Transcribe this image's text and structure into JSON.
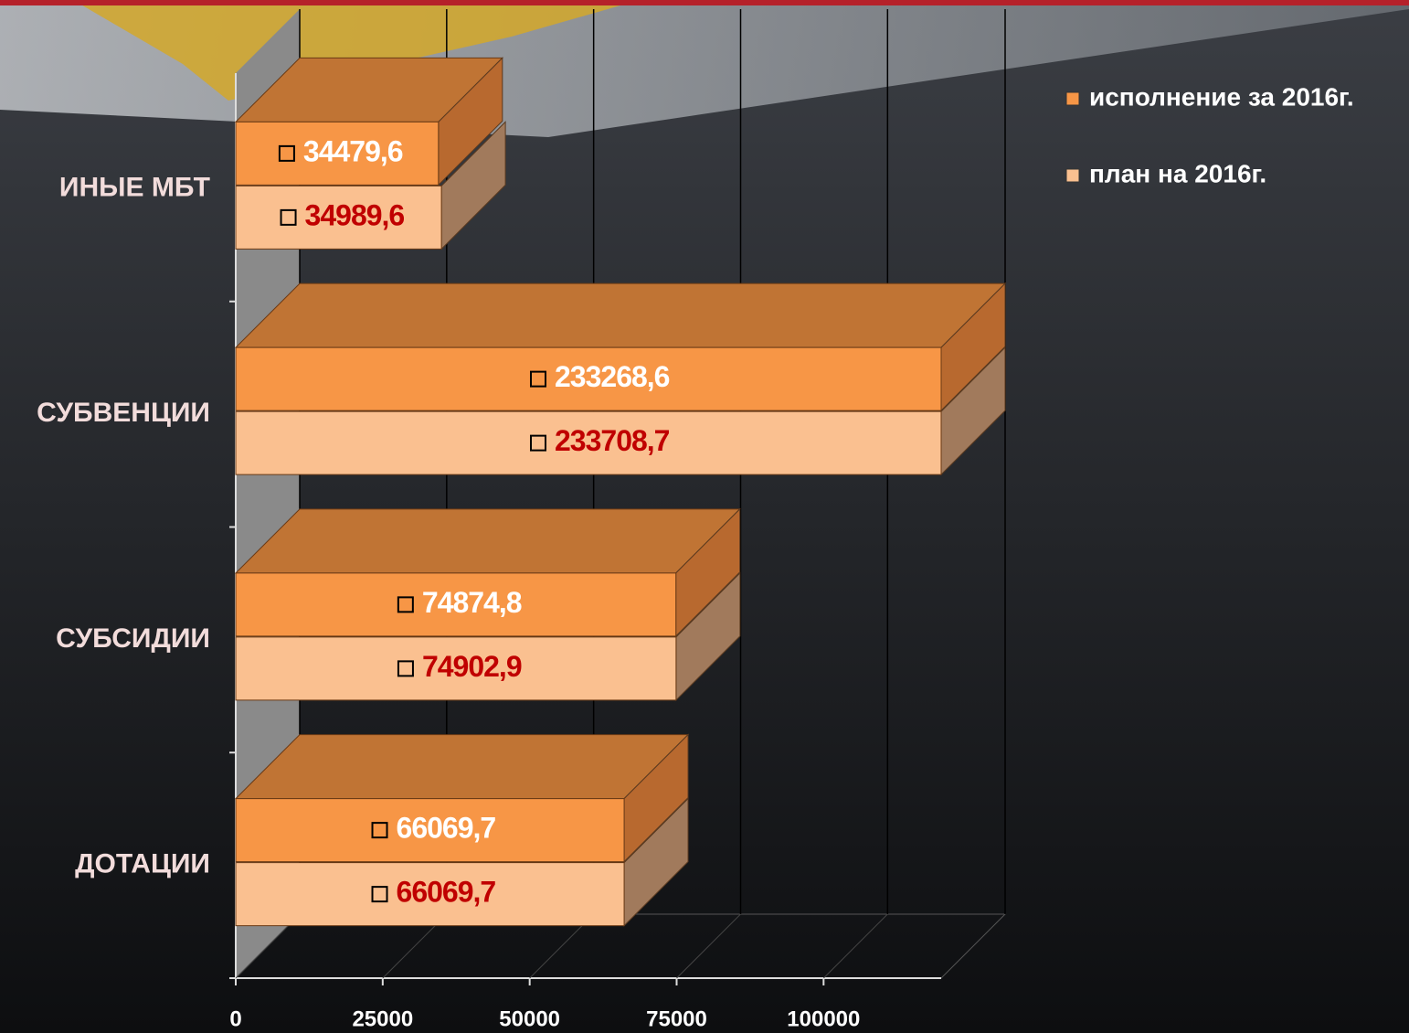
{
  "chart_data": {
    "type": "bar3d_horizontal",
    "categories": [
      "ИНЫЕ МБТ",
      "СУБВЕНЦИИ",
      "СУБСИДИИ",
      "ДОТАЦИИ"
    ],
    "series": [
      {
        "name": "исполнение за 2016г.",
        "color": "#f79646",
        "values": [
          34479.6,
          233268.6,
          74874.8,
          66069.7
        ],
        "value_labels": [
          "34479,6",
          "233268,6",
          "74874,8",
          "66069,7"
        ]
      },
      {
        "name": "план на 2016г.",
        "color": "#fac090",
        "values": [
          34989.6,
          233708.7,
          74902.9,
          66069.7
        ],
        "value_labels": [
          "34989,6",
          "233708,7",
          "74902,9",
          "66069,7"
        ]
      }
    ],
    "xlim": [
      0,
      120000
    ],
    "xticks": [
      0,
      25000,
      50000,
      75000,
      100000
    ],
    "grid": true,
    "legend": "top-right"
  }
}
